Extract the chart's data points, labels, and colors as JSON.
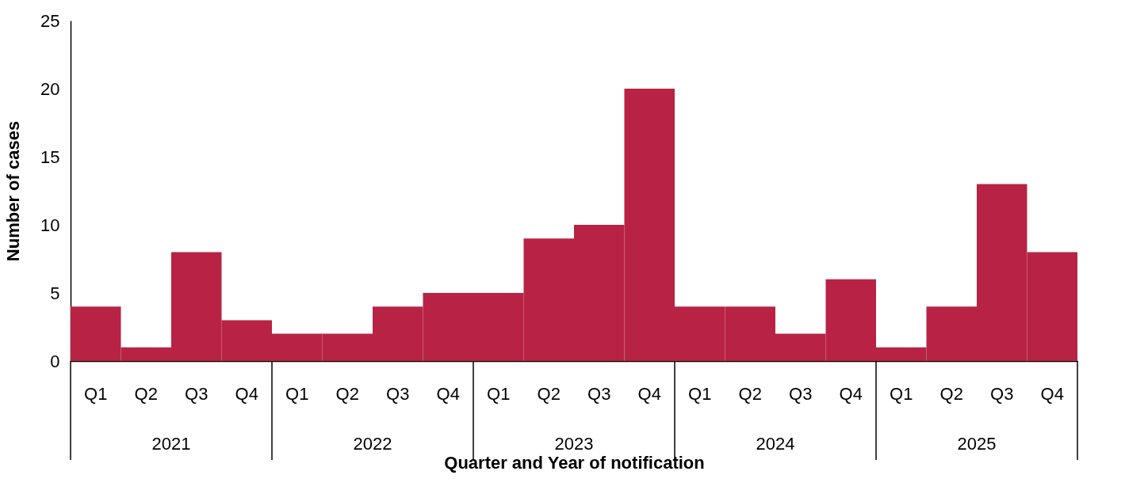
{
  "chart_data": {
    "type": "bar",
    "xlabel": "Quarter and Year of notification",
    "ylabel": "Number of cases",
    "categories": [
      "Q1",
      "Q2",
      "Q3",
      "Q4",
      "Q1",
      "Q2",
      "Q3",
      "Q4",
      "Q1",
      "Q2",
      "Q3",
      "Q4",
      "Q1",
      "Q2",
      "Q3",
      "Q4",
      "Q1",
      "Q2",
      "Q3",
      "Q4"
    ],
    "values": [
      4,
      1,
      8,
      3,
      2,
      2,
      4,
      5,
      5,
      9,
      10,
      20,
      4,
      4,
      2,
      6,
      1,
      4,
      13,
      8
    ],
    "color": "#b82345",
    "annotations": [
      "2021",
      "2022",
      "2023",
      "2024",
      "2025"
    ],
    "ylim": [
      0,
      25
    ],
    "yticks": [
      0,
      5,
      10,
      15,
      20,
      25
    ],
    "grid": false
  }
}
